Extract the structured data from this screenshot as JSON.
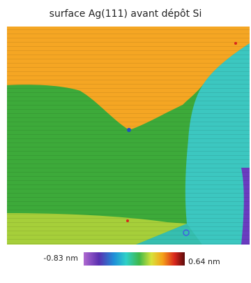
{
  "title": "surface Ag(111) avant dépôt Si",
  "colorbar": {
    "min_label": "-0.83 nm",
    "max_label": "0.64 nm"
  }
}
